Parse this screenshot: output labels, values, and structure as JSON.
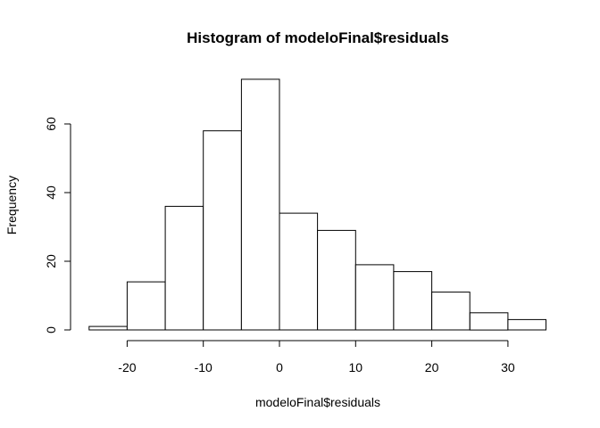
{
  "chart_data": {
    "type": "bar",
    "title": "Histogram of modeloFinal$residuals",
    "xlabel": "modeloFinal$residuals",
    "ylabel": "Frequency",
    "bins": [
      {
        "start": -25,
        "end": -20,
        "count": 1
      },
      {
        "start": -20,
        "end": -15,
        "count": 14
      },
      {
        "start": -15,
        "end": -10,
        "count": 36
      },
      {
        "start": -10,
        "end": -5,
        "count": 58
      },
      {
        "start": -5,
        "end": 0,
        "count": 73
      },
      {
        "start": 0,
        "end": 5,
        "count": 34
      },
      {
        "start": 5,
        "end": 10,
        "count": 29
      },
      {
        "start": 10,
        "end": 15,
        "count": 19
      },
      {
        "start": 15,
        "end": 20,
        "count": 17
      },
      {
        "start": 20,
        "end": 25,
        "count": 11
      },
      {
        "start": 25,
        "end": 30,
        "count": 5
      },
      {
        "start": 30,
        "end": 35,
        "count": 3
      }
    ],
    "x_ticks": [
      -20,
      -10,
      0,
      10,
      20,
      30
    ],
    "y_ticks": [
      0,
      20,
      40,
      60
    ],
    "xlim": [
      -25,
      35
    ],
    "ylim": [
      0,
      73
    ],
    "grid": false,
    "bar_fill": "#ffffff",
    "bar_stroke": "#000000"
  }
}
